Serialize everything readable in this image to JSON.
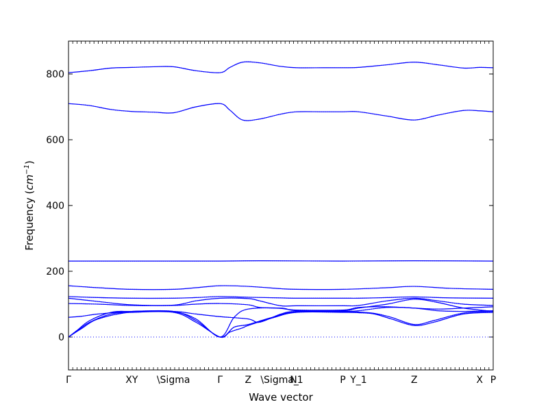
{
  "chart_data": {
    "type": "line",
    "title": "",
    "xlabel": "Wave vector",
    "ylabel_main": "Frequency (",
    "ylabel_unit": "cm",
    "ylabel_exp": "−1",
    "ylabel_close": ")",
    "ylim": [
      -100,
      900
    ],
    "yticks": [
      0,
      200,
      400,
      600,
      800
    ],
    "xlim": [
      0,
      1
    ],
    "high_symmetry_points": [
      {
        "label": "Γ",
        "x": 0.0
      },
      {
        "label": "XY",
        "x": 0.149
      },
      {
        "label": "\\Sigma",
        "x": 0.247
      },
      {
        "label": "Γ",
        "x": 0.357
      },
      {
        "label": "Z",
        "x": 0.423
      },
      {
        "label": "\\Sigma_",
        "x": 0.497
      },
      {
        "label": "N1",
        "x": 0.537
      },
      {
        "label": "P",
        "x": 0.646
      },
      {
        "label": "Y_1",
        "x": 0.683
      },
      {
        "label": "Z",
        "x": 0.814
      },
      {
        "label": "X",
        "x": 0.968
      },
      {
        "label": "P",
        "x": 1.0
      }
    ],
    "zero_line": 0,
    "series": [
      {
        "x": [
          0,
          0.05,
          0.1,
          0.149,
          0.2,
          0.247,
          0.3,
          0.357,
          0.38,
          0.41,
          0.45,
          0.5,
          0.537,
          0.6,
          0.646,
          0.683,
          0.75,
          0.814,
          0.87,
          0.93,
          0.968,
          1.0
        ],
        "y": [
          804,
          810,
          818,
          820,
          822,
          822,
          810,
          804,
          820,
          836,
          834,
          823,
          819,
          819,
          819,
          820,
          828,
          836,
          828,
          818,
          820,
          819
        ]
      },
      {
        "x": [
          0,
          0.05,
          0.1,
          0.149,
          0.2,
          0.247,
          0.3,
          0.357,
          0.38,
          0.41,
          0.45,
          0.5,
          0.537,
          0.6,
          0.646,
          0.683,
          0.75,
          0.814,
          0.87,
          0.93,
          0.968,
          1.0
        ],
        "y": [
          710,
          704,
          692,
          686,
          684,
          682,
          700,
          710,
          690,
          660,
          663,
          678,
          685,
          685,
          685,
          685,
          672,
          660,
          675,
          689,
          688,
          685
        ]
      },
      {
        "x": [
          0,
          0.149,
          0.357,
          0.45,
          0.646,
          0.814,
          1.0
        ],
        "y": [
          231,
          231,
          231,
          232,
          231,
          232,
          231
        ]
      },
      {
        "x": [
          0,
          0.07,
          0.149,
          0.247,
          0.3,
          0.357,
          0.423,
          0.5,
          0.537,
          0.646,
          0.75,
          0.814,
          0.9,
          1.0
        ],
        "y": [
          156,
          150,
          145,
          145,
          150,
          156,
          154,
          147,
          145,
          145,
          150,
          154,
          148,
          145
        ]
      },
      {
        "x": [
          0,
          0.07,
          0.149,
          0.247,
          0.3,
          0.357,
          0.423,
          0.5,
          0.537,
          0.646,
          0.683,
          0.75,
          0.814,
          0.9,
          1.0
        ],
        "y": [
          123,
          120,
          118,
          118,
          120,
          123,
          121,
          119,
          118,
          118,
          118,
          120,
          122,
          119,
          118
        ]
      },
      {
        "x": [
          0,
          0.07,
          0.149,
          0.247,
          0.3,
          0.357,
          0.423,
          0.45,
          0.5,
          0.537,
          0.646,
          0.683,
          0.75,
          0.814,
          0.87,
          0.93,
          1.0
        ],
        "y": [
          118,
          108,
          98,
          97,
          110,
          118,
          117,
          110,
          95,
          95,
          95,
          96,
          110,
          118,
          110,
          100,
          96
        ]
      },
      {
        "x": [
          0,
          0.07,
          0.149,
          0.247,
          0.3,
          0.357,
          0.423,
          0.45,
          0.5,
          0.537,
          0.646,
          0.683,
          0.75,
          0.814,
          0.87,
          0.93,
          1.0
        ],
        "y": [
          102,
          100,
          96,
          96,
          100,
          102,
          98,
          90,
          87,
          82,
          82,
          90,
          92,
          88,
          85,
          88,
          92
        ]
      },
      {
        "x": [
          0,
          0.03,
          0.07,
          0.149,
          0.247,
          0.3,
          0.357,
          0.423,
          0.45,
          0.5,
          0.537,
          0.646,
          0.683,
          0.75,
          0.814,
          0.87,
          0.93,
          1.0
        ],
        "y": [
          60,
          63,
          70,
          78,
          78,
          70,
          62,
          55,
          45,
          70,
          78,
          78,
          80,
          90,
          88,
          80,
          78,
          80
        ]
      },
      {
        "x": [
          0,
          0.02,
          0.05,
          0.1,
          0.149,
          0.247,
          0.3,
          0.357,
          0.39,
          0.423,
          0.48,
          0.537,
          0.646,
          0.683,
          0.72,
          0.76,
          0.814,
          0.86,
          0.93,
          1.0
        ],
        "y": [
          0,
          20,
          50,
          75,
          78,
          78,
          50,
          0,
          30,
          38,
          60,
          77,
          77,
          76,
          72,
          60,
          38,
          50,
          73,
          78
        ]
      },
      {
        "x": [
          0,
          0.02,
          0.05,
          0.1,
          0.149,
          0.247,
          0.3,
          0.357,
          0.38,
          0.41,
          0.423,
          0.48,
          0.537,
          0.646,
          0.683,
          0.72,
          0.76,
          0.814,
          0.86,
          0.93,
          1.0
        ],
        "y": [
          0,
          18,
          45,
          70,
          75,
          75,
          45,
          0,
          15,
          28,
          35,
          58,
          75,
          75,
          74,
          70,
          55,
          35,
          45,
          70,
          75
        ]
      },
      {
        "x": [
          0,
          0.03,
          0.07,
          0.149,
          0.247,
          0.3,
          0.357,
          0.39,
          0.423,
          0.5,
          0.537,
          0.646,
          0.683,
          0.75,
          0.814,
          0.87,
          0.93,
          1.0
        ],
        "y": [
          0,
          25,
          55,
          76,
          76,
          55,
          0,
          60,
          85,
          88,
          80,
          80,
          88,
          100,
          115,
          105,
          88,
          78
        ]
      }
    ]
  }
}
